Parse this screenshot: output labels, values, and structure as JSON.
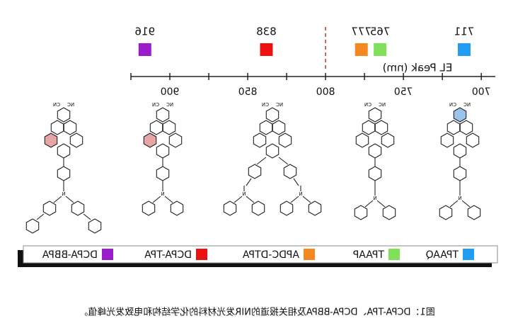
{
  "chart_data": {
    "type": "strip",
    "x_label": "EL Peak (nm)",
    "xlim": [
      691,
      925
    ],
    "xticks": [
      700,
      750,
      800,
      850,
      900
    ],
    "xminorticks": [
      725,
      775,
      825,
      875,
      925
    ],
    "reference_line": 800,
    "series": [
      {
        "name": "TPAAQ",
        "color": "#1e9ff2",
        "values": [
          711
        ]
      },
      {
        "name": "TPAAP",
        "color": "#7fe05a",
        "values": [
          765
        ]
      },
      {
        "name": "APDC-DTPA",
        "color": "#f5891f",
        "values": [
          777
        ]
      },
      {
        "name": "DCPA-TPA",
        "color": "#ee1111",
        "values": [
          838
        ]
      },
      {
        "name": "DCPA-BBPA",
        "color": "#9b1ccc",
        "values": [
          916
        ]
      }
    ]
  },
  "atom_labels": [
    "NC",
    "CN",
    "N"
  ],
  "caption": "图1：DCPA-TPA、DCPA-BBPA及相关报道的NIR发光材料的化学结构和电致发光峰值。"
}
